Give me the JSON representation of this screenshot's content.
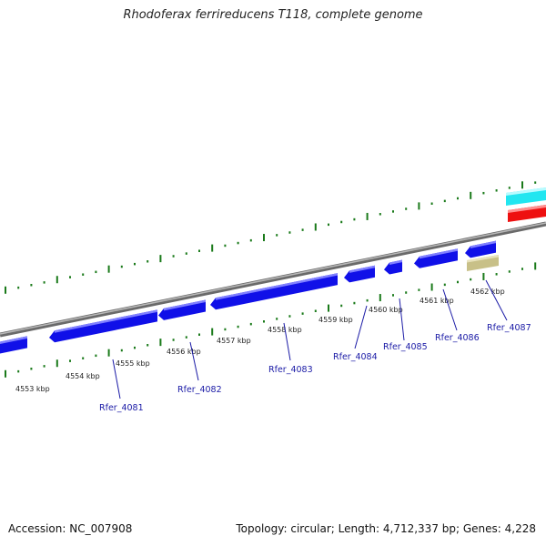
{
  "title": "Rhodoferax ferrireducens T118, complete genome",
  "footer": {
    "accession": "Accession: NC_007908",
    "summary": "Topology: circular; Length: 4,712,337 bp; Genes: 4,228"
  },
  "colors": {
    "forward_gene": "#1010e8",
    "other_gene": "#c8c088",
    "track_cyan": "#22e6f0",
    "track_red": "#ee1010",
    "backbone": "#8a8a8a",
    "ticks": "#1a7a1a",
    "label": "#1a1aa6"
  },
  "scale": {
    "labels": [
      "4553 kbp",
      "4554 kbp",
      "4555 kbp",
      "4556 kbp",
      "4557 kbp",
      "4558 kbp",
      "4559 kbp",
      "4560 kbp",
      "4561 kbp",
      "4562 kbp"
    ]
  },
  "genes": [
    {
      "label": "Rfer_4081"
    },
    {
      "label": "Rfer_4082"
    },
    {
      "label": "Rfer_4083"
    },
    {
      "label": "Rfer_4084"
    },
    {
      "label": "Rfer_4085"
    },
    {
      "label": "Rfer_4086"
    },
    {
      "label": "Rfer_4087"
    }
  ]
}
